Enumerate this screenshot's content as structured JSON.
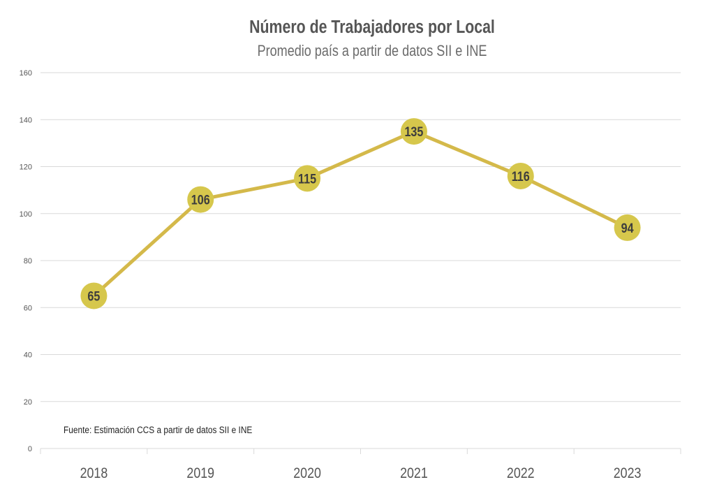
{
  "chart_data": {
    "type": "line",
    "title": "Número de Trabajadores por Local",
    "subtitle": "Promedio país a partir de datos SII e INE",
    "categories": [
      "2018",
      "2019",
      "2020",
      "2021",
      "2022",
      "2023"
    ],
    "values": [
      65,
      106,
      115,
      135,
      116,
      94
    ],
    "data_labels": [
      "65",
      "106",
      "115",
      "135",
      "116",
      "94"
    ],
    "ylim": [
      0,
      160
    ],
    "yticks": [
      "0",
      "20",
      "40",
      "60",
      "80",
      "100",
      "120",
      "140",
      "160"
    ],
    "grid": true,
    "xlabel": "",
    "ylabel": "",
    "annotation": "Fuente: Estimación CCS a partir de datos SII e INE",
    "series_color": "#d4b94a",
    "marker_color": "#d6c74c"
  }
}
